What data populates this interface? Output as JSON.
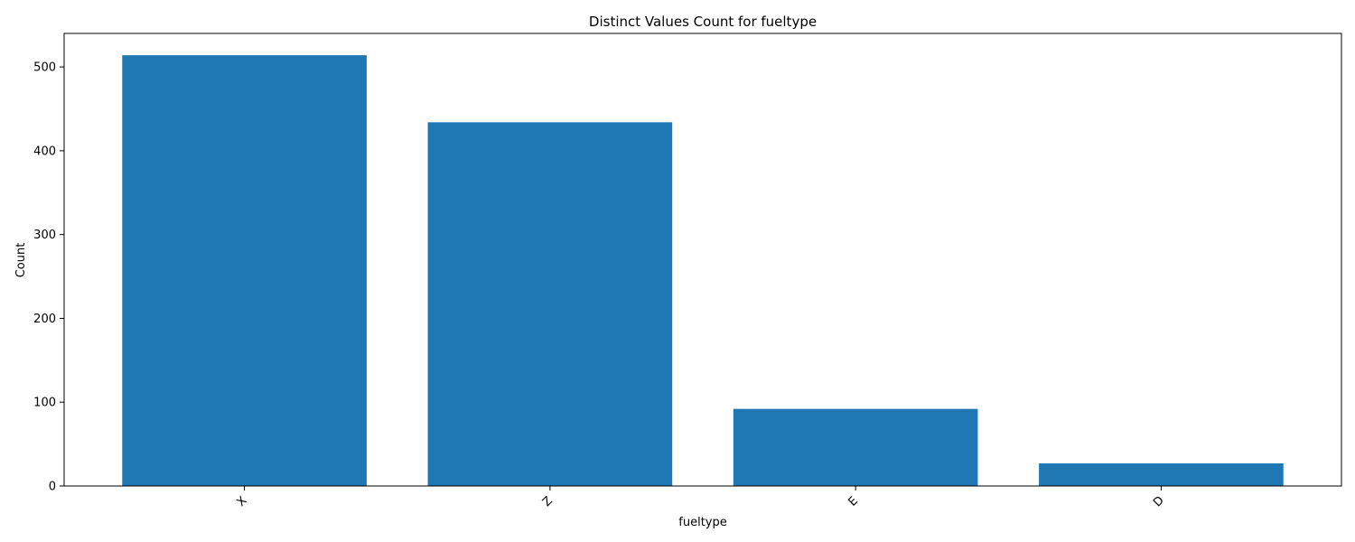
{
  "chart_data": {
    "type": "bar",
    "title": "Distinct Values Count for fueltype",
    "xlabel": "fueltype",
    "ylabel": "Count",
    "categories": [
      "X",
      "Z",
      "E",
      "D"
    ],
    "values": [
      514,
      434,
      92,
      27
    ],
    "ylim": [
      0,
      540
    ],
    "yticks": [
      0,
      100,
      200,
      300,
      400,
      500
    ],
    "grid": false,
    "bar_color": "#1f77b4",
    "xtick_rotation": 45
  }
}
